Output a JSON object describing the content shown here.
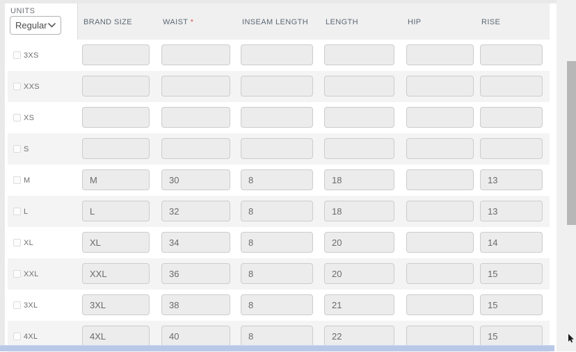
{
  "units_selector": {
    "label": "UNITS",
    "selected": "Regular"
  },
  "table": {
    "required_marker": "*",
    "columns": [
      {
        "key": "brand_size",
        "label": "BRAND SIZE",
        "required": false
      },
      {
        "key": "waist",
        "label": "WAIST",
        "required": true
      },
      {
        "key": "inseam_length",
        "label": "INSEAM LENGTH",
        "required": false
      },
      {
        "key": "length",
        "label": "LENGTH",
        "required": false
      },
      {
        "key": "hip",
        "label": "HIP",
        "required": false
      },
      {
        "key": "rise",
        "label": "RISE",
        "required": false
      }
    ],
    "rows": [
      {
        "size": "3XS",
        "checked": false,
        "values": {
          "brand_size": "",
          "waist": "",
          "inseam_length": "",
          "length": "",
          "hip": "",
          "rise": ""
        }
      },
      {
        "size": "XXS",
        "checked": false,
        "values": {
          "brand_size": "",
          "waist": "",
          "inseam_length": "",
          "length": "",
          "hip": "",
          "rise": ""
        }
      },
      {
        "size": "XS",
        "checked": false,
        "values": {
          "brand_size": "",
          "waist": "",
          "inseam_length": "",
          "length": "",
          "hip": "",
          "rise": ""
        }
      },
      {
        "size": "S",
        "checked": false,
        "values": {
          "brand_size": "",
          "waist": "",
          "inseam_length": "",
          "length": "",
          "hip": "",
          "rise": ""
        }
      },
      {
        "size": "M",
        "checked": false,
        "values": {
          "brand_size": "M",
          "waist": "30",
          "inseam_length": "8",
          "length": "18",
          "hip": "",
          "rise": "13"
        }
      },
      {
        "size": "L",
        "checked": false,
        "values": {
          "brand_size": "L",
          "waist": "32",
          "inseam_length": "8",
          "length": "18",
          "hip": "",
          "rise": "13"
        }
      },
      {
        "size": "XL",
        "checked": false,
        "values": {
          "brand_size": "XL",
          "waist": "34",
          "inseam_length": "8",
          "length": "20",
          "hip": "",
          "rise": "14"
        }
      },
      {
        "size": "XXL",
        "checked": false,
        "values": {
          "brand_size": "XXL",
          "waist": "36",
          "inseam_length": "8",
          "length": "20",
          "hip": "",
          "rise": "15"
        }
      },
      {
        "size": "3XL",
        "checked": false,
        "values": {
          "brand_size": "3XL",
          "waist": "38",
          "inseam_length": "8",
          "length": "21",
          "hip": "",
          "rise": "15"
        }
      },
      {
        "size": "4XL",
        "checked": false,
        "values": {
          "brand_size": "4XL",
          "waist": "40",
          "inseam_length": "8",
          "length": "22",
          "hip": "",
          "rise": "15"
        }
      }
    ]
  },
  "icons": {
    "chevron_down": "v-shaped chevron in units dropdown",
    "mouse_cursor": "black pointer arrow near bottom-right"
  },
  "colors": {
    "header_band": "#f0f0f1",
    "row_alt": "#f4f4f5",
    "input_bg": "#ececec",
    "required_asterisk": "#d9534f",
    "hscrollbar_thumb": "#b9c8e7",
    "vscrollbar_thumb": "#b7b7b7"
  }
}
